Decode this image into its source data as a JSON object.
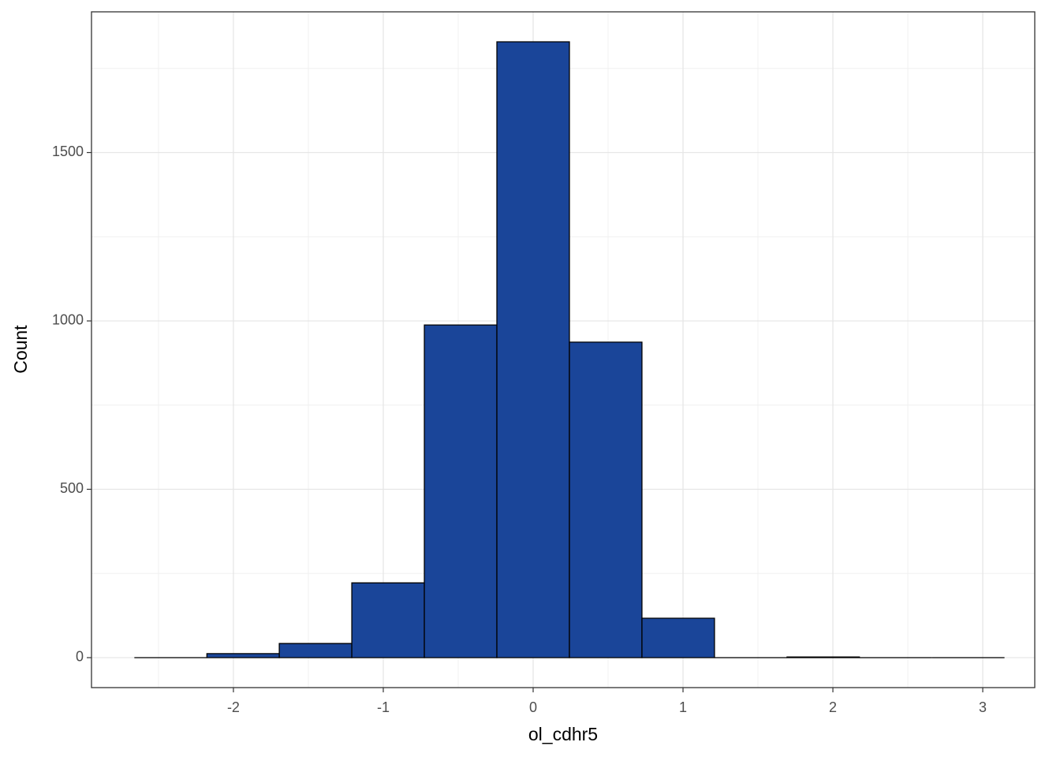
{
  "chart_data": {
    "type": "histogram",
    "x_label": "ol_cdhr5",
    "y_label": "Count",
    "bins": [
      -2.661,
      -2.177,
      -1.694,
      -1.21,
      -0.726,
      -0.242,
      0.242,
      0.726,
      1.21,
      1.694,
      2.177,
      2.661,
      3.145
    ],
    "values": [
      0,
      12,
      42,
      222,
      988,
      1829,
      937,
      117,
      0,
      2,
      0,
      0
    ],
    "color": "#1a4599",
    "edge_color": "#000000",
    "xlim": [
      -2.947,
      3.347
    ],
    "ylim": [
      -89,
      1918
    ],
    "xticks": [
      -2,
      -1,
      0,
      1,
      2,
      3
    ],
    "yticks": [
      0,
      500,
      1000,
      1500
    ],
    "minor_xticks": [
      -2.5,
      -1.5,
      -0.5,
      0.5,
      1.5,
      2.5
    ],
    "minor_yticks": [
      250,
      750,
      1250,
      1750
    ],
    "grid": true
  }
}
